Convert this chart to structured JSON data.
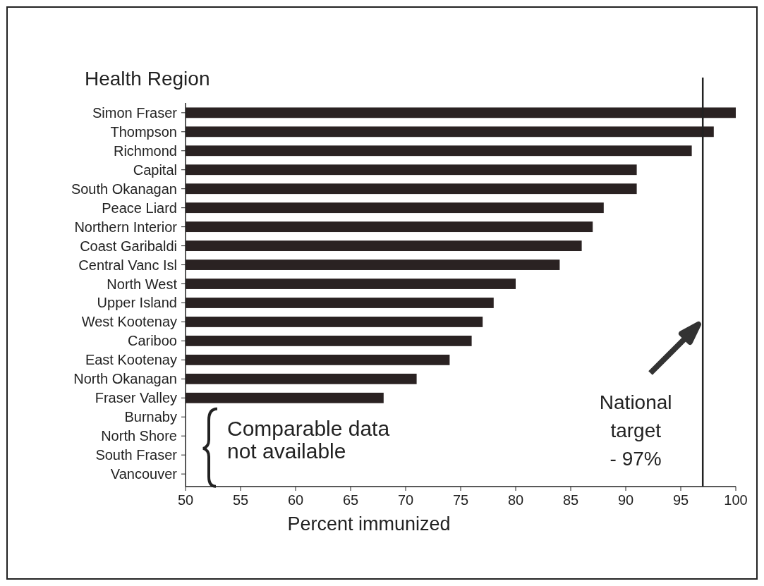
{
  "chart_data": {
    "type": "bar",
    "orientation": "horizontal",
    "ylabel": "Health Region",
    "xlabel": "Percent immunized",
    "categories": [
      "Simon Fraser",
      "Thompson",
      "Richmond",
      "Capital",
      "South Okanagan",
      "Peace Liard",
      "Northern Interior",
      "Coast Garibaldi",
      "Central Vanc Isl",
      "North West",
      "Upper Island",
      "West Kootenay",
      "Cariboo",
      "East Kootenay",
      "North Okanagan",
      "Fraser Valley",
      "Burnaby",
      "North Shore",
      "South Fraser",
      "Vancouver"
    ],
    "values": [
      100,
      98,
      96,
      91,
      91,
      88,
      87,
      86,
      84,
      80,
      78,
      77,
      76,
      74,
      71,
      68,
      null,
      null,
      null,
      null
    ],
    "color": "#2a2222",
    "xlim": [
      50,
      100
    ],
    "xticks": [
      50,
      55,
      60,
      65,
      70,
      75,
      80,
      85,
      90,
      95,
      100
    ],
    "ref_lines": [
      {
        "axis": "x",
        "value": 97,
        "label": "National target - 97%",
        "color": "#222222"
      }
    ],
    "annotations": [
      "Comparable data not available"
    ],
    "grid": false
  }
}
